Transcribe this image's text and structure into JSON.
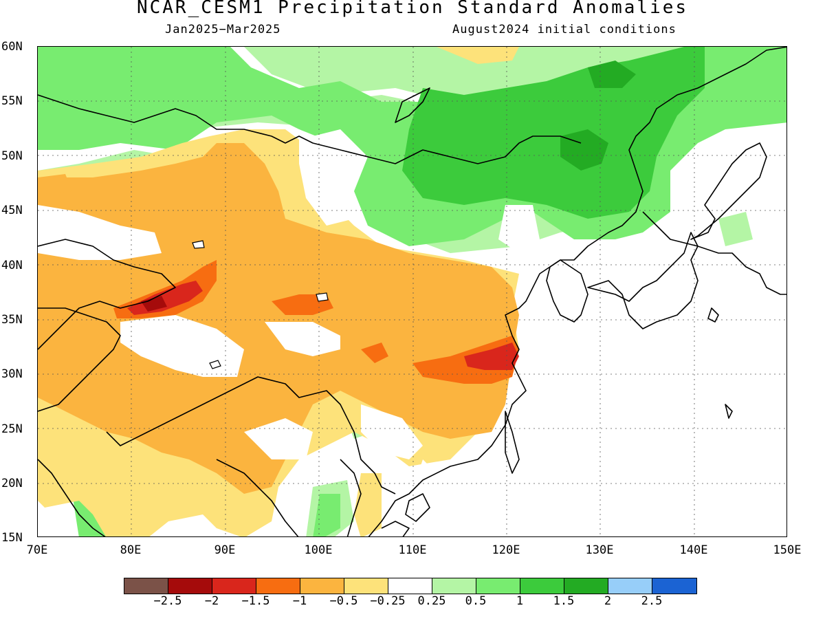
{
  "header": {
    "title": "NCAR_CESM1 Precipitation Standard Anomalies",
    "period": "Jan2025−Mar2025",
    "init": "August2024 initial conditions"
  },
  "axes": {
    "lat_labels": [
      "60N",
      "55N",
      "50N",
      "45N",
      "40N",
      "35N",
      "30N",
      "25N",
      "20N",
      "15N"
    ],
    "lon_labels": [
      "70E",
      "80E",
      "90E",
      "100E",
      "110E",
      "120E",
      "130E",
      "140E",
      "150E"
    ],
    "lat_range": [
      15,
      60
    ],
    "lon_range": [
      70,
      150
    ],
    "gridlines": true
  },
  "colorbar": {
    "colors": [
      "#7b5248",
      "#a50b0b",
      "#d9261c",
      "#f76d11",
      "#fbb43f",
      "#fde27a",
      "#ffffff",
      "#b4f5a5",
      "#78ec70",
      "#3ccb3c",
      "#23ab23",
      "#97cef9",
      "#1b63d3"
    ],
    "labels": [
      "−2.5",
      "−2",
      "−1.5",
      "−1",
      "−0.5",
      "−0.25",
      "0.25",
      "0.5",
      "1",
      "1.5",
      "2",
      "2.5"
    ]
  }
}
